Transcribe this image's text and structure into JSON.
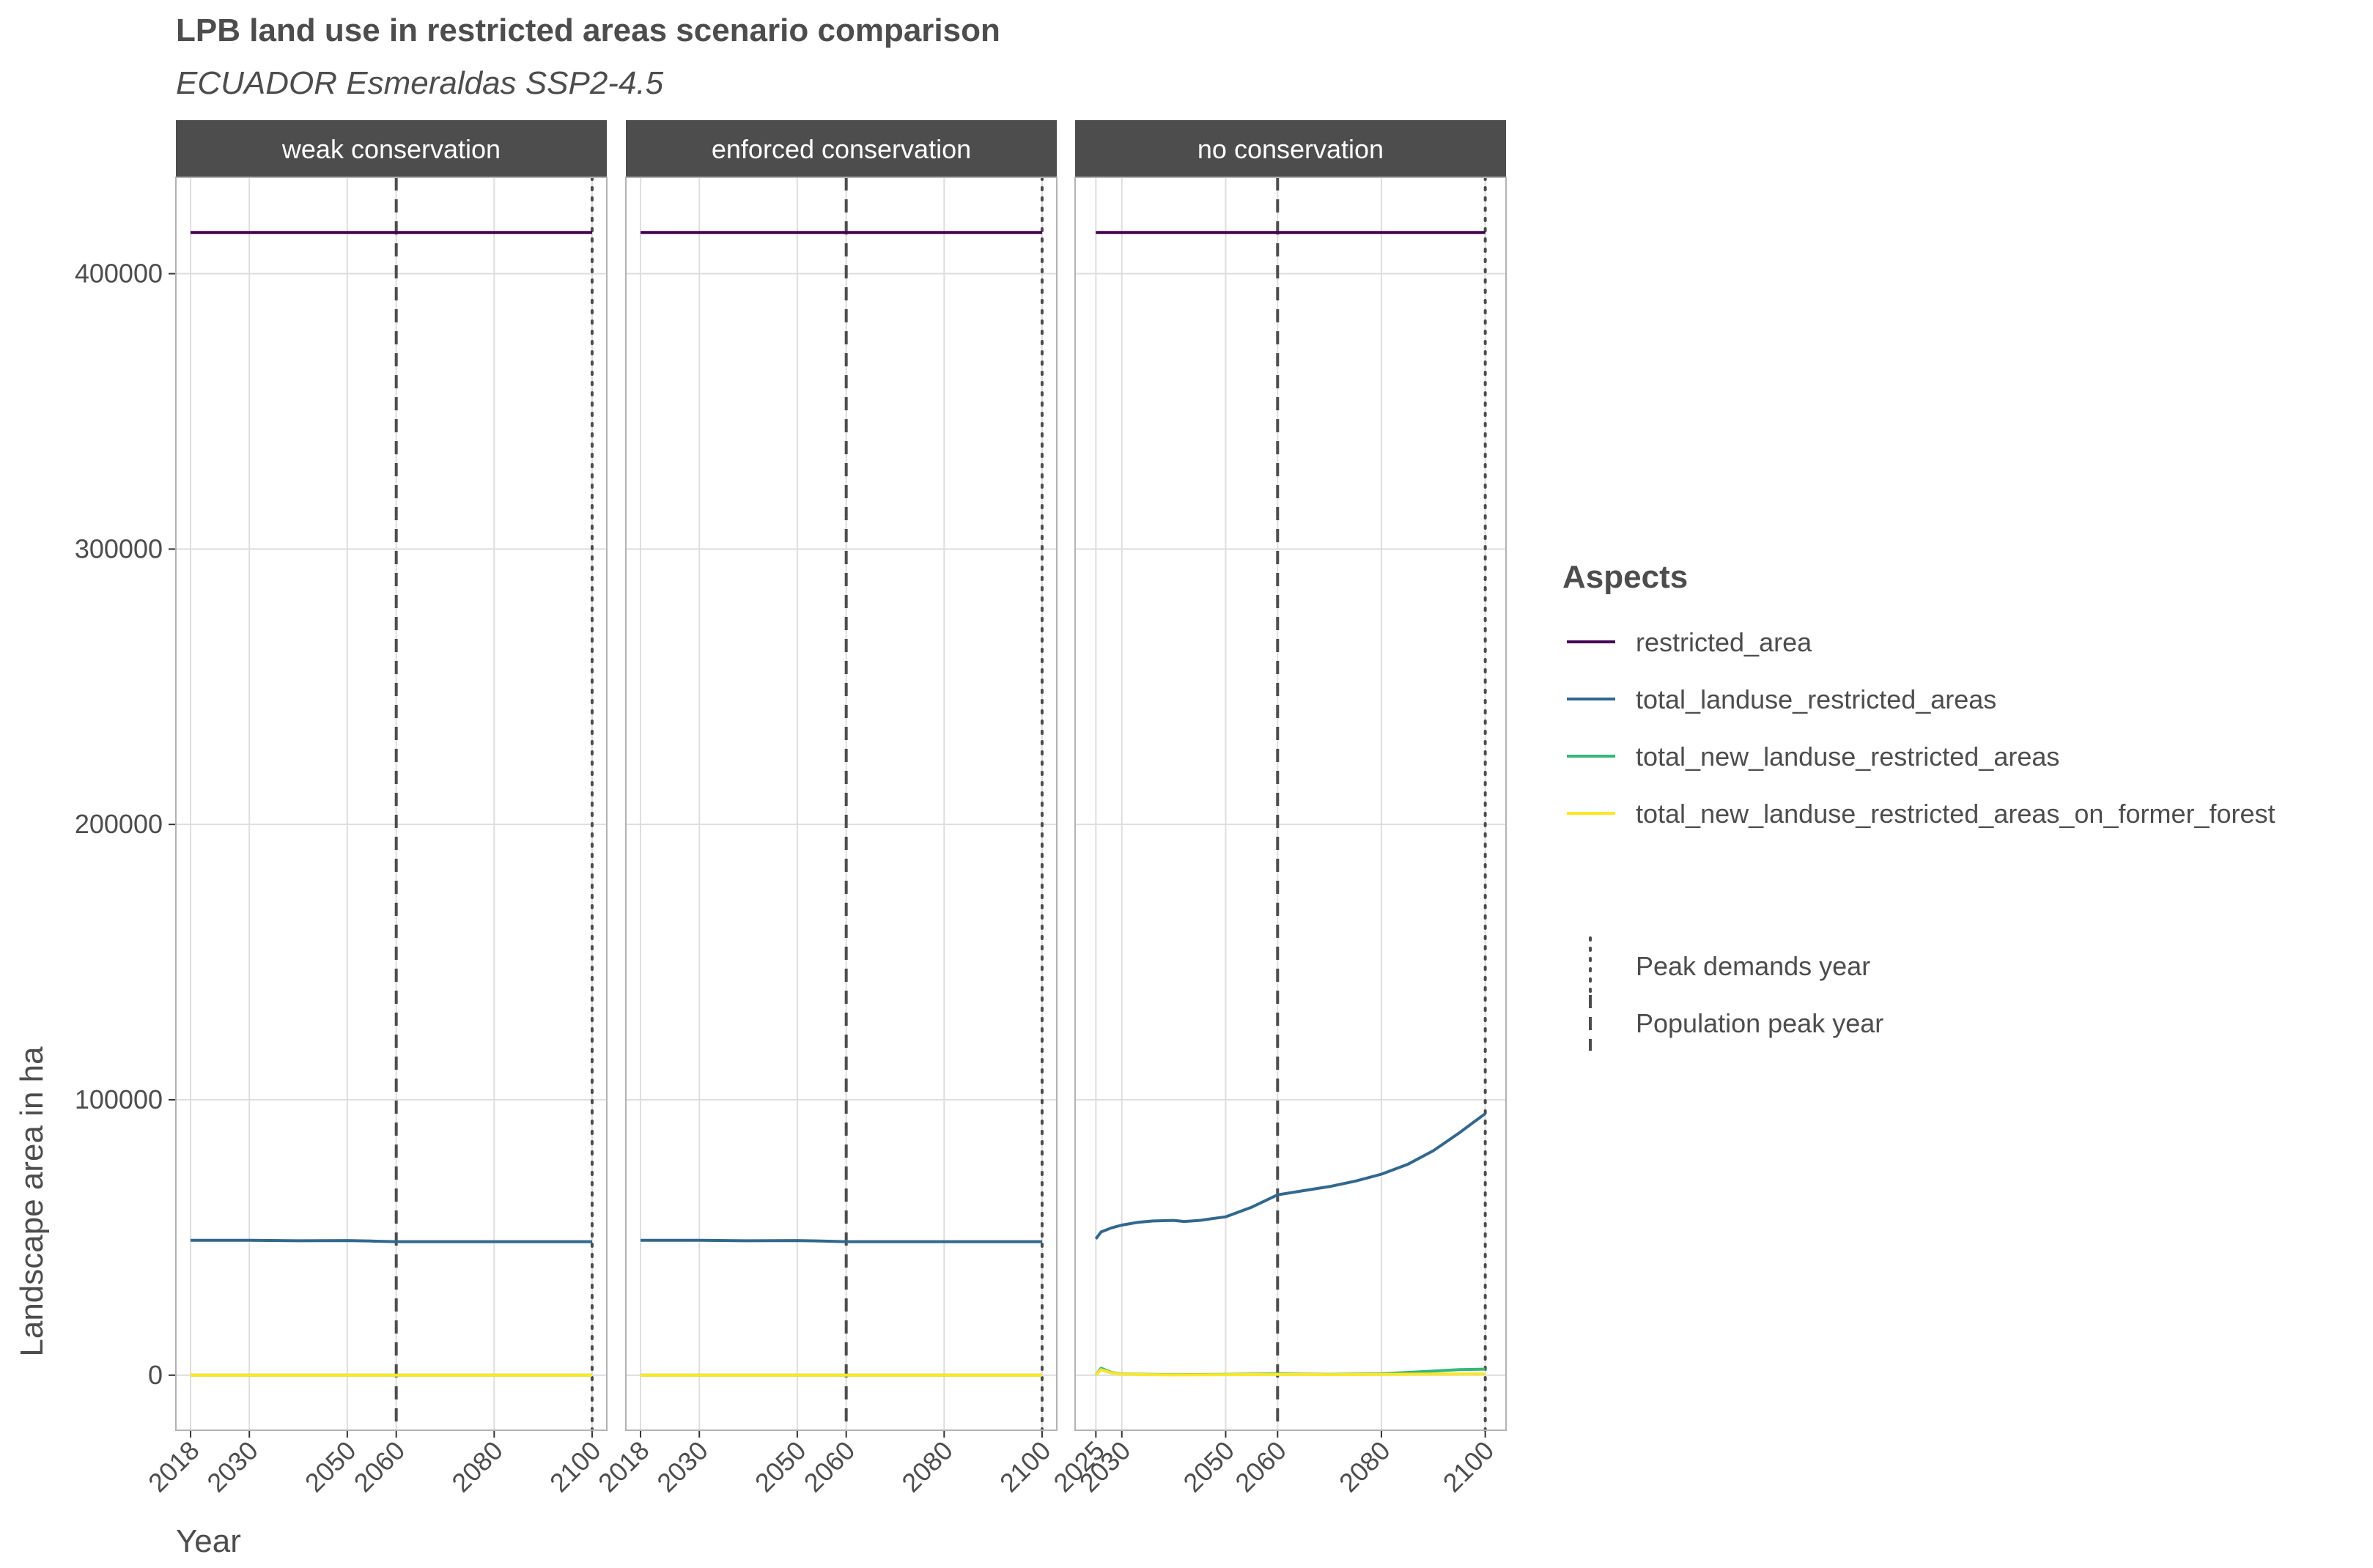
{
  "chart_data": {
    "type": "line",
    "title": "LPB land use in restricted areas scenario comparison",
    "subtitle": "ECUADOR Esmeraldas SSP2-4.5",
    "xlabel": "Year",
    "ylabel": "Landscape area in ha",
    "ylim": [
      -20000,
      435000
    ],
    "yticks": [
      0,
      100000,
      200000,
      300000,
      400000
    ],
    "grid": true,
    "legend_position": "right",
    "legend_title": "Aspects",
    "colors": {
      "restricted_area": "#440154",
      "total_landuse_restricted_areas": "#31688e",
      "total_new_landuse_restricted_areas": "#35b779",
      "total_new_landuse_restricted_areas_on_former_forest": "#fde725",
      "reference_line": "#4d4d4d",
      "strip_background": "#4d4d4d"
    },
    "legend_entries": [
      {
        "key": "restricted_area",
        "label": "restricted_area"
      },
      {
        "key": "total_landuse_restricted_areas",
        "label": "total_landuse_restricted_areas"
      },
      {
        "key": "total_new_landuse_restricted_areas",
        "label": "total_new_landuse_restricted_areas"
      },
      {
        "key": "total_new_landuse_restricted_areas_on_former_forest",
        "label": "total_new_landuse_restricted_areas_on_former_forest"
      }
    ],
    "reference_legend": [
      {
        "style": "dotted",
        "label": "Peak demands year"
      },
      {
        "style": "dashed",
        "label": "Population peak year"
      }
    ],
    "panels": [
      {
        "title": "weak conservation",
        "xlim": [
          2015,
          2103
        ],
        "xticks": [
          "2018",
          "2030",
          "2050",
          "2060",
          "2080",
          "2100"
        ],
        "population_peak_year": 2060,
        "peak_demands_year": 2100,
        "series": [
          {
            "key": "restricted_area",
            "x": [
              2018,
              2100
            ],
            "y": [
              415000,
              415000
            ]
          },
          {
            "key": "total_landuse_restricted_areas",
            "x": [
              2018,
              2030,
              2040,
              2050,
              2055,
              2060,
              2070,
              2080,
              2090,
              2100
            ],
            "y": [
              49000,
              49000,
              48800,
              48900,
              48700,
              48500,
              48500,
              48500,
              48500,
              48500
            ]
          },
          {
            "key": "total_new_landuse_restricted_areas",
            "x": [
              2018,
              2100
            ],
            "y": [
              0,
              0
            ]
          },
          {
            "key": "total_new_landuse_restricted_areas_on_former_forest",
            "x": [
              2018,
              2100
            ],
            "y": [
              0,
              0
            ]
          }
        ]
      },
      {
        "title": "enforced conservation",
        "xlim": [
          2015,
          2103
        ],
        "xticks": [
          "2018",
          "2030",
          "2050",
          "2060",
          "2080",
          "2100"
        ],
        "population_peak_year": 2060,
        "peak_demands_year": 2100,
        "series": [
          {
            "key": "restricted_area",
            "x": [
              2018,
              2100
            ],
            "y": [
              415000,
              415000
            ]
          },
          {
            "key": "total_landuse_restricted_areas",
            "x": [
              2018,
              2030,
              2040,
              2050,
              2055,
              2060,
              2070,
              2080,
              2090,
              2100
            ],
            "y": [
              49000,
              49000,
              48800,
              48900,
              48700,
              48500,
              48500,
              48500,
              48500,
              48500
            ]
          },
          {
            "key": "total_new_landuse_restricted_areas",
            "x": [
              2018,
              2100
            ],
            "y": [
              0,
              0
            ]
          },
          {
            "key": "total_new_landuse_restricted_areas_on_former_forest",
            "x": [
              2018,
              2100
            ],
            "y": [
              0,
              0
            ]
          }
        ]
      },
      {
        "title": "no conservation",
        "xlim": [
          2021,
          2104
        ],
        "xticks": [
          "2025",
          "2030",
          "2050",
          "2060",
          "2080",
          "2100"
        ],
        "population_peak_year": 2060,
        "peak_demands_year": 2100,
        "series": [
          {
            "key": "restricted_area",
            "x": [
              2025,
              2100
            ],
            "y": [
              415000,
              415000
            ]
          },
          {
            "key": "total_landuse_restricted_areas",
            "x": [
              2025,
              2026,
              2028,
              2030,
              2033,
              2036,
              2040,
              2042,
              2045,
              2050,
              2055,
              2060,
              2065,
              2070,
              2075,
              2080,
              2085,
              2090,
              2095,
              2100
            ],
            "y": [
              49500,
              52000,
              53500,
              54500,
              55500,
              56000,
              56200,
              55800,
              56200,
              57500,
              61000,
              65500,
              67000,
              68500,
              70500,
              73000,
              76500,
              81500,
              88000,
              95000
            ]
          },
          {
            "key": "total_new_landuse_restricted_areas",
            "x": [
              2025,
              2026,
              2028,
              2030,
              2035,
              2040,
              2050,
              2060,
              2070,
              2080,
              2085,
              2090,
              2095,
              2100
            ],
            "y": [
              0,
              2500,
              1000,
              500,
              300,
              200,
              300,
              500,
              300,
              500,
              1000,
              1500,
              2000,
              2200
            ]
          },
          {
            "key": "total_new_landuse_restricted_areas_on_former_forest",
            "x": [
              2025,
              2026,
              2028,
              2030,
              2035,
              2040,
              2050,
              2060,
              2070,
              2080,
              2090,
              2100
            ],
            "y": [
              0,
              2000,
              800,
              400,
              200,
              100,
              200,
              300,
              200,
              300,
              400,
              500
            ]
          }
        ]
      }
    ]
  }
}
